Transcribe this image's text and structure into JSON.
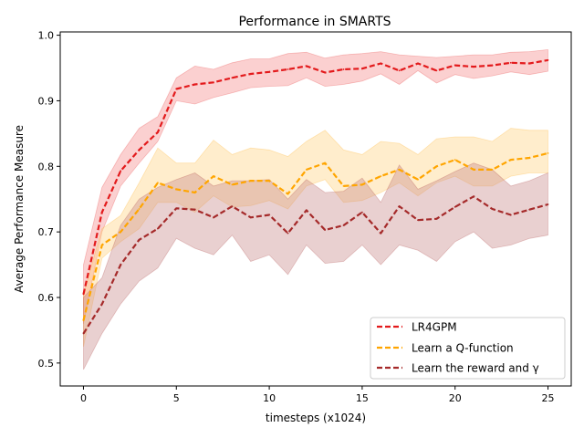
{
  "chart_data": {
    "type": "line",
    "title": "Performance in SMARTS",
    "xlabel": "timesteps (x1024)",
    "ylabel": "Average Performance Measure",
    "xlim": [
      -1.25,
      26.25
    ],
    "ylim": [
      0.465,
      1.005
    ],
    "xticks": [
      0,
      5,
      10,
      15,
      20,
      25
    ],
    "yticks": [
      0.5,
      0.6,
      0.7,
      0.8,
      0.9,
      1.0
    ],
    "ytick_labels": [
      "0.5",
      "0.6",
      "0.7",
      "0.8",
      "0.9",
      "1.0"
    ],
    "legend_position": "lower-right",
    "x": [
      0,
      1,
      2,
      3,
      4,
      5,
      6,
      7,
      8,
      9,
      10,
      11,
      12,
      13,
      14,
      15,
      16,
      17,
      18,
      19,
      20,
      21,
      22,
      23,
      24,
      25
    ],
    "series": [
      {
        "name": "LR4GPM",
        "color": "#e31a1c",
        "band_color": "#f58a8a",
        "values": [
          0.605,
          0.73,
          0.793,
          0.825,
          0.852,
          0.918,
          0.925,
          0.928,
          0.935,
          0.941,
          0.944,
          0.948,
          0.953,
          0.943,
          0.948,
          0.949,
          0.957,
          0.946,
          0.957,
          0.946,
          0.954,
          0.952,
          0.954,
          0.958,
          0.957,
          0.962
        ],
        "lower": [
          0.56,
          0.7,
          0.77,
          0.805,
          0.838,
          0.9,
          0.895,
          0.905,
          0.912,
          0.92,
          0.922,
          0.923,
          0.935,
          0.922,
          0.925,
          0.93,
          0.941,
          0.925,
          0.946,
          0.927,
          0.94,
          0.934,
          0.938,
          0.944,
          0.94,
          0.945
        ],
        "upper": [
          0.65,
          0.768,
          0.818,
          0.858,
          0.876,
          0.935,
          0.953,
          0.948,
          0.958,
          0.964,
          0.964,
          0.972,
          0.974,
          0.965,
          0.97,
          0.972,
          0.975,
          0.97,
          0.968,
          0.966,
          0.968,
          0.97,
          0.97,
          0.974,
          0.975,
          0.978
        ]
      },
      {
        "name": "Learn a Q-function",
        "color": "#ffa500",
        "band_color": "#ffd27f",
        "values": [
          0.565,
          0.68,
          0.7,
          0.735,
          0.775,
          0.765,
          0.76,
          0.785,
          0.772,
          0.778,
          0.778,
          0.758,
          0.795,
          0.805,
          0.77,
          0.772,
          0.785,
          0.795,
          0.78,
          0.8,
          0.81,
          0.795,
          0.795,
          0.81,
          0.813,
          0.82
        ],
        "lower": [
          0.525,
          0.66,
          0.685,
          0.705,
          0.745,
          0.745,
          0.73,
          0.755,
          0.738,
          0.74,
          0.748,
          0.735,
          0.77,
          0.78,
          0.745,
          0.748,
          0.76,
          0.775,
          0.755,
          0.775,
          0.785,
          0.77,
          0.77,
          0.785,
          0.79,
          0.79
        ],
        "upper": [
          0.605,
          0.705,
          0.725,
          0.775,
          0.828,
          0.805,
          0.805,
          0.84,
          0.818,
          0.828,
          0.825,
          0.815,
          0.838,
          0.855,
          0.825,
          0.818,
          0.838,
          0.835,
          0.818,
          0.842,
          0.845,
          0.845,
          0.838,
          0.858,
          0.855,
          0.855
        ]
      },
      {
        "name": "Learn the reward and γ",
        "color": "#a52a2a",
        "band_color": "#c98a8a",
        "values": [
          0.545,
          0.59,
          0.65,
          0.688,
          0.705,
          0.736,
          0.734,
          0.722,
          0.739,
          0.722,
          0.726,
          0.698,
          0.733,
          0.703,
          0.71,
          0.73,
          0.698,
          0.739,
          0.718,
          0.72,
          0.738,
          0.754,
          0.735,
          0.726,
          0.734,
          0.742
        ],
        "lower": [
          0.49,
          0.545,
          0.59,
          0.625,
          0.645,
          0.69,
          0.675,
          0.665,
          0.695,
          0.655,
          0.665,
          0.635,
          0.68,
          0.652,
          0.655,
          0.68,
          0.65,
          0.68,
          0.672,
          0.655,
          0.685,
          0.7,
          0.675,
          0.68,
          0.69,
          0.695
        ],
        "upper": [
          0.6,
          0.63,
          0.71,
          0.75,
          0.768,
          0.78,
          0.79,
          0.77,
          0.778,
          0.778,
          0.78,
          0.75,
          0.78,
          0.76,
          0.762,
          0.782,
          0.745,
          0.802,
          0.765,
          0.778,
          0.792,
          0.805,
          0.795,
          0.77,
          0.778,
          0.79
        ]
      }
    ]
  }
}
